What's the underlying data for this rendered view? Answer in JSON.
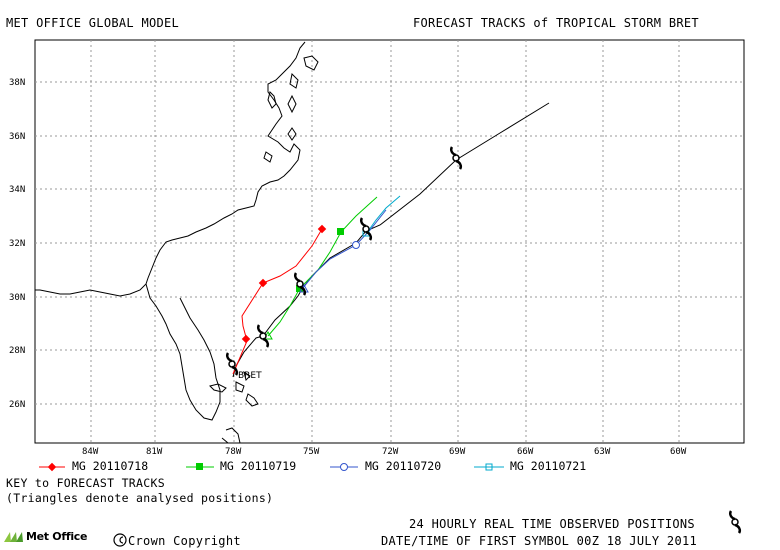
{
  "header": {
    "left_title": "MET OFFICE GLOBAL MODEL",
    "right_title": "FORECAST TRACKS of TROPICAL STORM BRET"
  },
  "map": {
    "lat_labels": [
      "38N",
      "36N",
      "34N",
      "32N",
      "30N",
      "28N",
      "26N"
    ],
    "lon_labels": [
      "84W",
      "81W",
      "78W",
      "75W",
      "72W",
      "69W",
      "66W",
      "63W",
      "60W"
    ],
    "storm_label": "BRET",
    "colors": {
      "land_outline": "#000000",
      "grid": "#999999",
      "observed_track": "#000000"
    }
  },
  "legend": {
    "tracks": [
      {
        "label": "MG 20110718",
        "color": "#ff0000",
        "marker": "filled-diamond"
      },
      {
        "label": "MG 20110719",
        "color": "#00cc00",
        "marker": "filled-square"
      },
      {
        "label": "MG 20110720",
        "color": "#3355cc",
        "marker": "open-circle"
      },
      {
        "label": "MG 20110721",
        "color": "#00aacc",
        "marker": "open-square"
      }
    ],
    "key_line1": "KEY to FORECAST TRACKS",
    "key_line2": "(Triangles denote analysed positions)"
  },
  "footer": {
    "logo_text": "Met Office",
    "copyright": "Crown Copyright",
    "observed_note": "24 HOURLY REAL TIME OBSERVED POSITIONS",
    "first_symbol": "DATE/TIME OF FIRST SYMBOL 00Z 18 JULY 2011",
    "hurricane_icon": "tropical-cyclone-icon"
  }
}
